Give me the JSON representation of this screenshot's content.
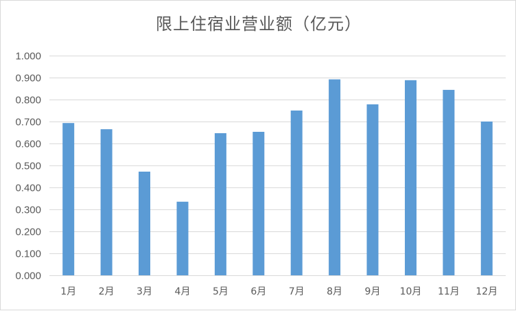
{
  "chart_data": {
    "type": "bar",
    "title": "限上住宿业营业额（亿元）",
    "xlabel": "",
    "ylabel": "",
    "categories": [
      "1月",
      "2月",
      "3月",
      "4月",
      "5月",
      "6月",
      "7月",
      "8月",
      "9月",
      "10月",
      "11月",
      "12月"
    ],
    "values": [
      0.693,
      0.665,
      0.472,
      0.335,
      0.647,
      0.653,
      0.75,
      0.892,
      0.778,
      0.888,
      0.844,
      0.7
    ],
    "ylim": [
      0,
      1.0
    ],
    "yticks": [
      "0.000",
      "0.100",
      "0.200",
      "0.300",
      "0.400",
      "0.500",
      "0.600",
      "0.700",
      "0.800",
      "0.900",
      "1.000"
    ],
    "grid": true,
    "legend": "none",
    "bar_color": "#5b9bd5",
    "grid_color": "#d9d9d9",
    "text_color": "#595959"
  }
}
